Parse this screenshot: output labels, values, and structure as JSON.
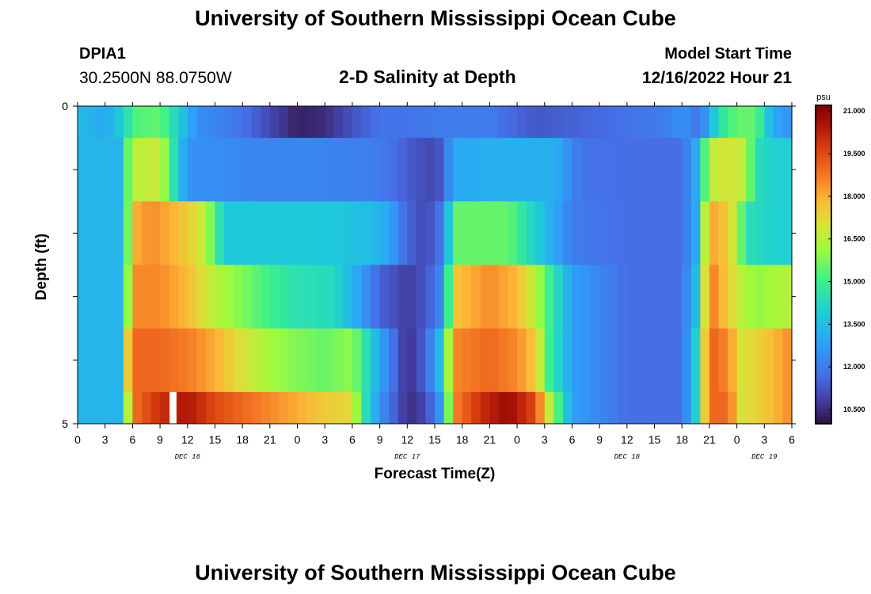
{
  "header": {
    "title": "University of Southern Mississippi Ocean Cube",
    "station": "DPIA1",
    "coordinates": "30.2500N  88.0750W",
    "subtitle": "2-D Salinity at Depth",
    "model_start_label": "Model Start Time",
    "model_start_value": "12/16/2022 Hour 21"
  },
  "footer": {
    "title": "University of Southern Mississippi Ocean Cube"
  },
  "chart_data": {
    "type": "heatmap",
    "title": "2-D Salinity at Depth",
    "xlabel": "Forecast Time(Z)",
    "ylabel": "Depth (ft)",
    "x_ticks": [
      "0",
      "3",
      "6",
      "9",
      "12",
      "15",
      "18",
      "21",
      "0",
      "3",
      "6",
      "9",
      "12",
      "15",
      "18",
      "21",
      "0",
      "3",
      "6",
      "9",
      "12",
      "15",
      "18",
      "21",
      "0",
      "3",
      "6"
    ],
    "day_labels": [
      {
        "label": "DEC 16",
        "tick_index": 4
      },
      {
        "label": "DEC 17",
        "tick_index": 12
      },
      {
        "label": "DEC 18",
        "tick_index": 20
      },
      {
        "label": "DEC 19",
        "tick_index": 25
      }
    ],
    "y_ticks": [
      "0",
      "5"
    ],
    "y_range": [
      0,
      5
    ],
    "x_range_hours": [
      0,
      78
    ],
    "colorbar": {
      "unit": "psu",
      "range": [
        10.0,
        21.2
      ],
      "tick_labels": [
        "21.000",
        "19.500",
        "18.000",
        "16.500",
        "15.000",
        "13.500",
        "12.000",
        "10.500"
      ],
      "tick_values": [
        21.0,
        19.5,
        18.0,
        16.5,
        15.0,
        13.5,
        12.0,
        10.5
      ]
    },
    "depth_layers": [
      "0-0.5 ft",
      "0.5-1.5 ft",
      "1.5-2.5 ft",
      "2.5-3.5 ft",
      "3.5-4.5 ft",
      "4.5-5 ft"
    ],
    "series": [
      {
        "name": "0-0.5 ft",
        "keyframes": [
          [
            0,
            13.5
          ],
          [
            3,
            13.0
          ],
          [
            5,
            14.0
          ],
          [
            6,
            15.2
          ],
          [
            9,
            15.5
          ],
          [
            11,
            14.0
          ],
          [
            13,
            12.5
          ],
          [
            18,
            11.8
          ],
          [
            21,
            11.0
          ],
          [
            24,
            10.3
          ],
          [
            27,
            10.5
          ],
          [
            30,
            11.2
          ],
          [
            33,
            11.8
          ],
          [
            36,
            11.8
          ],
          [
            40,
            12.0
          ],
          [
            45,
            12.0
          ],
          [
            48,
            11.5
          ],
          [
            50,
            11.3
          ],
          [
            55,
            11.5
          ],
          [
            60,
            11.8
          ],
          [
            64,
            12.0
          ],
          [
            66,
            12.5
          ],
          [
            68,
            11.8
          ],
          [
            70,
            14.5
          ],
          [
            72,
            15.5
          ],
          [
            74,
            15.5
          ],
          [
            76,
            13.0
          ],
          [
            78,
            12.5
          ]
        ]
      },
      {
        "name": "0.5-1.5 ft",
        "keyframes": [
          [
            0,
            13.3
          ],
          [
            4.5,
            13.3
          ],
          [
            5,
            14.5
          ],
          [
            6,
            16.5
          ],
          [
            9,
            16.8
          ],
          [
            10.5,
            14.5
          ],
          [
            12,
            12.5
          ],
          [
            20,
            12.2
          ],
          [
            27,
            12.2
          ],
          [
            33,
            12.0
          ],
          [
            37,
            11.2
          ],
          [
            39,
            11.0
          ],
          [
            40,
            11.5
          ],
          [
            41,
            13.0
          ],
          [
            45,
            13.2
          ],
          [
            52,
            13.2
          ],
          [
            53.5,
            12.5
          ],
          [
            55,
            11.8
          ],
          [
            60,
            11.7
          ],
          [
            66,
            11.7
          ],
          [
            67.5,
            13.0
          ],
          [
            68,
            14.0
          ],
          [
            69,
            16.5
          ],
          [
            71,
            17.0
          ],
          [
            73,
            16.5
          ],
          [
            74,
            14.5
          ],
          [
            76,
            14.0
          ],
          [
            78,
            14.0
          ]
        ]
      },
      {
        "name": "1.5-2.5 ft",
        "keyframes": [
          [
            0,
            13.3
          ],
          [
            4.5,
            13.3
          ],
          [
            6,
            16.8
          ],
          [
            6.5,
            18.0
          ],
          [
            8,
            18.5
          ],
          [
            12,
            17.5
          ],
          [
            14,
            16.5
          ],
          [
            15.5,
            14.5
          ],
          [
            16,
            13.8
          ],
          [
            28,
            13.8
          ],
          [
            32,
            13.5
          ],
          [
            34,
            13.0
          ],
          [
            36,
            11.5
          ],
          [
            38,
            11.0
          ],
          [
            40,
            12.0
          ],
          [
            41,
            15.5
          ],
          [
            47,
            15.5
          ],
          [
            49,
            14.5
          ],
          [
            51,
            13.5
          ],
          [
            54,
            12.0
          ],
          [
            60,
            11.7
          ],
          [
            66,
            11.7
          ],
          [
            67.5,
            13.0
          ],
          [
            68.5,
            16.5
          ],
          [
            69.5,
            18.0
          ],
          [
            71,
            17.5
          ],
          [
            72,
            16.5
          ],
          [
            73,
            14.5
          ],
          [
            76,
            14.0
          ],
          [
            78,
            14.0
          ]
        ]
      },
      {
        "name": "2.5-3.5 ft",
        "keyframes": [
          [
            0,
            13.3
          ],
          [
            4.5,
            13.3
          ],
          [
            5.5,
            16.0
          ],
          [
            6,
            18.5
          ],
          [
            9,
            18.5
          ],
          [
            12,
            17.8
          ],
          [
            15,
            16.5
          ],
          [
            18,
            15.8
          ],
          [
            21,
            15.0
          ],
          [
            24,
            14.5
          ],
          [
            28,
            14.3
          ],
          [
            30.5,
            13.0
          ],
          [
            33,
            11.5
          ],
          [
            36,
            10.8
          ],
          [
            38,
            11.2
          ],
          [
            40,
            12.5
          ],
          [
            41,
            17.5
          ],
          [
            45,
            18.5
          ],
          [
            48,
            17.8
          ],
          [
            50,
            16.5
          ],
          [
            51,
            15.5
          ],
          [
            54,
            12.8
          ],
          [
            60,
            11.7
          ],
          [
            66,
            11.7
          ],
          [
            67.5,
            13.5
          ],
          [
            68.5,
            17.0
          ],
          [
            69.5,
            18.5
          ],
          [
            71,
            17.5
          ],
          [
            72.5,
            16.5
          ],
          [
            74,
            16.0
          ],
          [
            78,
            16.5
          ]
        ]
      },
      {
        "name": "3.5-4.5 ft",
        "keyframes": [
          [
            0,
            13.3
          ],
          [
            4.5,
            13.3
          ],
          [
            5.5,
            17.5
          ],
          [
            6,
            19.0
          ],
          [
            9,
            19.0
          ],
          [
            12,
            18.7
          ],
          [
            15,
            18.0
          ],
          [
            18,
            17.0
          ],
          [
            21,
            16.2
          ],
          [
            24,
            15.8
          ],
          [
            27,
            15.5
          ],
          [
            30,
            16.0
          ],
          [
            31,
            15.0
          ],
          [
            33,
            13.0
          ],
          [
            36,
            10.5
          ],
          [
            38,
            11.5
          ],
          [
            40,
            14.0
          ],
          [
            41,
            18.5
          ],
          [
            45,
            19.0
          ],
          [
            48,
            18.5
          ],
          [
            50,
            17.5
          ],
          [
            51.5,
            15.0
          ],
          [
            54,
            12.8
          ],
          [
            60,
            11.7
          ],
          [
            66,
            11.7
          ],
          [
            67.5,
            14.0
          ],
          [
            68.5,
            17.5
          ],
          [
            69.5,
            19.0
          ],
          [
            71,
            18.5
          ],
          [
            72.5,
            17.0
          ],
          [
            75,
            17.5
          ],
          [
            78,
            18.5
          ]
        ]
      },
      {
        "name": "4.5-5 ft",
        "keyframes": [
          [
            0,
            13.3
          ],
          [
            4.5,
            13.3
          ],
          [
            5.5,
            16.5
          ],
          [
            6.5,
            19.0
          ],
          [
            9,
            20.0
          ],
          [
            12,
            20.5
          ],
          [
            15,
            19.5
          ],
          [
            18,
            19.0
          ],
          [
            21,
            18.5
          ],
          [
            24,
            18.0
          ],
          [
            27,
            17.5
          ],
          [
            30,
            17.2
          ],
          [
            31,
            15.0
          ],
          [
            33,
            12.5
          ],
          [
            36,
            10.5
          ],
          [
            38,
            11.0
          ],
          [
            40,
            13.0
          ],
          [
            41,
            18.5
          ],
          [
            44,
            20.0
          ],
          [
            47,
            20.8
          ],
          [
            50,
            19.5
          ],
          [
            51,
            17.5
          ],
          [
            54,
            12.8
          ],
          [
            60,
            11.7
          ],
          [
            66,
            11.7
          ],
          [
            67.5,
            14.0
          ],
          [
            68.5,
            17.5
          ],
          [
            69.5,
            19.0
          ],
          [
            71,
            19.0
          ],
          [
            72.5,
            17.0
          ],
          [
            75,
            17.5
          ],
          [
            78,
            18.5
          ]
        ]
      }
    ]
  }
}
